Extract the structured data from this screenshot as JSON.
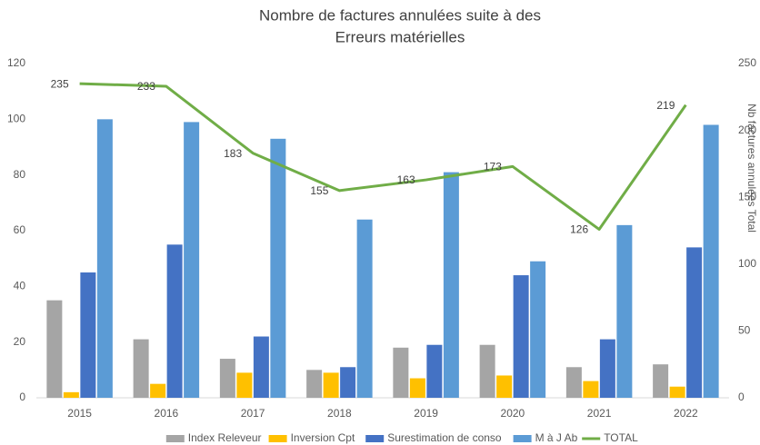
{
  "chart_data": {
    "type": "bar",
    "title": [
      "Nombre de factures annulées suite à des",
      "Erreurs matérielles"
    ],
    "categories": [
      "2015",
      "2016",
      "2017",
      "2018",
      "2019",
      "2020",
      "2021",
      "2022"
    ],
    "series": [
      {
        "name": "Index Releveur",
        "color": "#a5a5a5",
        "values": [
          35,
          21,
          14,
          10,
          18,
          19,
          11,
          12
        ]
      },
      {
        "name": "Inversion Cpt",
        "color": "#ffc000",
        "values": [
          2,
          5,
          9,
          9,
          7,
          8,
          6,
          4
        ]
      },
      {
        "name": "Surestimation de conso",
        "color": "#4472c4",
        "values": [
          45,
          55,
          22,
          11,
          19,
          44,
          21,
          54
        ]
      },
      {
        "name": "M à J Ab",
        "color": "#5b9bd5",
        "values": [
          100,
          99,
          93,
          64,
          81,
          49,
          62,
          98
        ]
      },
      {
        "name": "TOTAL",
        "color": "#70ad47",
        "type": "line",
        "axis": "y2",
        "values": [
          235,
          233,
          183,
          155,
          163,
          173,
          126,
          219
        ]
      }
    ],
    "ylim": [
      0,
      120
    ],
    "yticks": [
      0,
      20,
      40,
      60,
      80,
      100,
      120
    ],
    "y2lim": [
      0,
      250
    ],
    "y2ticks": [
      0,
      50,
      100,
      150,
      200,
      250
    ],
    "y2label": "Nb factures annulées Total",
    "legend": "bottom"
  }
}
